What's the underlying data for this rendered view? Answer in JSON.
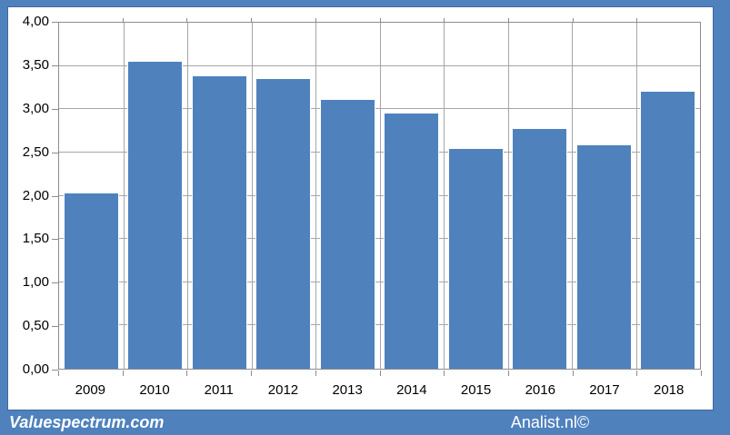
{
  "chart_data": {
    "type": "bar",
    "categories": [
      "2009",
      "2010",
      "2011",
      "2012",
      "2013",
      "2014",
      "2015",
      "2016",
      "2017",
      "2018"
    ],
    "values": [
      2.04,
      3.56,
      3.39,
      3.36,
      3.12,
      2.96,
      2.55,
      2.78,
      2.59,
      3.21
    ],
    "title": "",
    "xlabel": "",
    "ylabel": "",
    "ylim": [
      0,
      4
    ],
    "ytick_step": 0.5,
    "ytick_labels_top_down": [
      "4,00",
      "3,50",
      "3,00",
      "2,50",
      "2,00",
      "1,50",
      "1,00",
      "0,50",
      "0,00"
    ],
    "grid": true,
    "legend": "none",
    "bar_color": "#4f81bd"
  },
  "footer": {
    "left_brand": "Valuespectrum.com",
    "right_brand": "Analist.nl©"
  },
  "colors": {
    "frame_blue": "#4f81bd",
    "frame_blue_dark": "#40689b",
    "grid_gray": "#a6a6a6",
    "axis_gray": "#8c8c8c",
    "bar_blue": "#4f81bd",
    "text_black": "#000000",
    "footer_text": "#ffffff"
  }
}
